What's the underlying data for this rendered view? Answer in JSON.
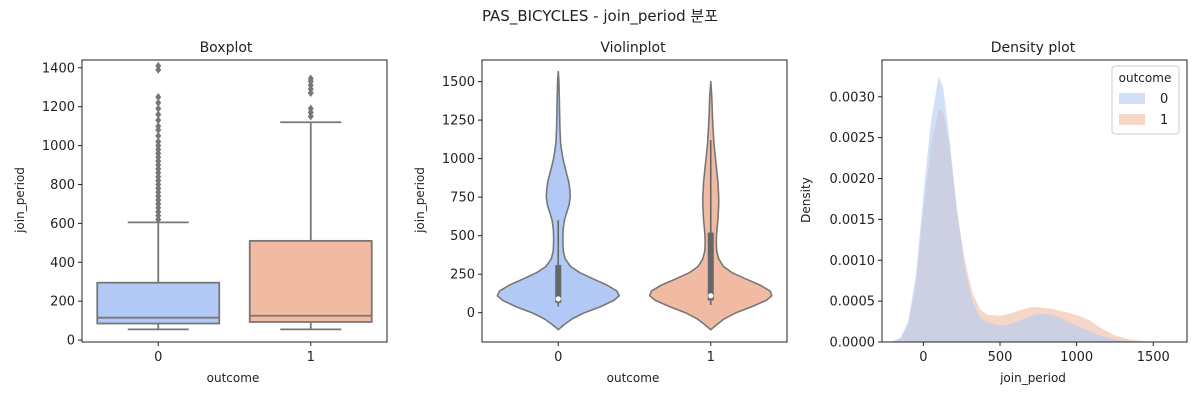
{
  "figure": {
    "suptitle": "PAS_BICYCLES - join_period 분포"
  },
  "colors": {
    "c0": "#b3c9f5",
    "c1": "#f0bba2",
    "edge": "#777777"
  },
  "chart_data": [
    {
      "type": "box",
      "title": "Boxplot",
      "xlabel": "outcome",
      "ylabel": "join_period",
      "categories": [
        "0",
        "1"
      ],
      "ylim": [
        -10,
        1440
      ],
      "yticks": [
        0,
        200,
        400,
        600,
        800,
        1000,
        1200,
        1400
      ],
      "boxes": [
        {
          "category": "0",
          "whislo": 55,
          "q1": 85,
          "median": 115,
          "q3": 295,
          "whishi": 605,
          "fliers": [
            620,
            640,
            660,
            680,
            700,
            720,
            740,
            760,
            780,
            800,
            820,
            840,
            860,
            880,
            900,
            920,
            940,
            960,
            980,
            1000,
            1020,
            1050,
            1080,
            1100,
            1130,
            1160,
            1190,
            1220,
            1250,
            1390,
            1410
          ]
        },
        {
          "category": "1",
          "whislo": 55,
          "q1": 93,
          "median": 125,
          "q3": 510,
          "whishi": 1120,
          "fliers": [
            1150,
            1170,
            1190,
            1270,
            1290,
            1310,
            1330,
            1345
          ]
        }
      ]
    },
    {
      "type": "violin",
      "title": "Violinplot",
      "xlabel": "outcome",
      "ylabel": "join_period",
      "categories": [
        "0",
        "1"
      ],
      "ylim": [
        -190,
        1640
      ],
      "yticks": [
        0,
        250,
        500,
        750,
        1000,
        1250,
        1500
      ],
      "violins": [
        {
          "category": "0",
          "q1": 65,
          "median": 90,
          "q3": 310,
          "whislo": 40,
          "whishi": 600,
          "profile": [
            [
              -110,
              0
            ],
            [
              -80,
              0.07
            ],
            [
              -40,
              0.18
            ],
            [
              0,
              0.34
            ],
            [
              40,
              0.55
            ],
            [
              80,
              0.72
            ],
            [
              110,
              0.79
            ],
            [
              140,
              0.76
            ],
            [
              180,
              0.63
            ],
            [
              220,
              0.45
            ],
            [
              260,
              0.28
            ],
            [
              300,
              0.16
            ],
            [
              350,
              0.09
            ],
            [
              400,
              0.065
            ],
            [
              450,
              0.06
            ],
            [
              500,
              0.06
            ],
            [
              550,
              0.065
            ],
            [
              600,
              0.08
            ],
            [
              650,
              0.11
            ],
            [
              700,
              0.14
            ],
            [
              750,
              0.155
            ],
            [
              800,
              0.15
            ],
            [
              850,
              0.135
            ],
            [
              900,
              0.11
            ],
            [
              950,
              0.085
            ],
            [
              1000,
              0.06
            ],
            [
              1050,
              0.045
            ],
            [
              1100,
              0.03
            ],
            [
              1200,
              0.022
            ],
            [
              1300,
              0.017
            ],
            [
              1400,
              0.013
            ],
            [
              1500,
              0.008
            ],
            [
              1565,
              0
            ]
          ]
        },
        {
          "category": "1",
          "q1": 80,
          "median": 110,
          "q3": 520,
          "whislo": 50,
          "whishi": 1120,
          "profile": [
            [
              -110,
              0
            ],
            [
              -80,
              0.07
            ],
            [
              -40,
              0.17
            ],
            [
              0,
              0.32
            ],
            [
              40,
              0.52
            ],
            [
              80,
              0.7
            ],
            [
              110,
              0.77
            ],
            [
              140,
              0.75
            ],
            [
              180,
              0.62
            ],
            [
              220,
              0.44
            ],
            [
              260,
              0.27
            ],
            [
              300,
              0.16
            ],
            [
              350,
              0.1
            ],
            [
              400,
              0.075
            ],
            [
              450,
              0.07
            ],
            [
              500,
              0.072
            ],
            [
              550,
              0.08
            ],
            [
              600,
              0.09
            ],
            [
              650,
              0.095
            ],
            [
              700,
              0.1
            ],
            [
              750,
              0.1
            ],
            [
              800,
              0.095
            ],
            [
              850,
              0.09
            ],
            [
              900,
              0.08
            ],
            [
              950,
              0.07
            ],
            [
              1000,
              0.06
            ],
            [
              1050,
              0.05
            ],
            [
              1100,
              0.04
            ],
            [
              1200,
              0.028
            ],
            [
              1300,
              0.02
            ],
            [
              1400,
              0.013
            ],
            [
              1500,
              0
            ]
          ]
        }
      ]
    },
    {
      "type": "area",
      "title": "Density plot",
      "xlabel": "join_period",
      "ylabel": "Density",
      "xlim": [
        -270,
        1720
      ],
      "ylim": [
        0,
        0.00345
      ],
      "xticks": [
        0,
        500,
        1000,
        1500
      ],
      "yticks": [
        0,
        0.0005,
        0.001,
        0.0015,
        0.002,
        0.0025,
        0.003
      ],
      "ytick_labels": [
        "0.0000",
        "0.0005",
        "0.0010",
        "0.0015",
        "0.0020",
        "0.0025",
        "0.0030"
      ],
      "legend": {
        "title": "outcome",
        "location": "top-right"
      },
      "series": [
        {
          "name": "0",
          "points": [
            [
              -270,
              0
            ],
            [
              -200,
              1e-05
            ],
            [
              -150,
              5e-05
            ],
            [
              -100,
              0.00025
            ],
            [
              -50,
              0.0008
            ],
            [
              0,
              0.0018
            ],
            [
              50,
              0.0027
            ],
            [
              100,
              0.00325
            ],
            [
              130,
              0.0031
            ],
            [
              170,
              0.0025
            ],
            [
              220,
              0.0016
            ],
            [
              270,
              0.0009
            ],
            [
              320,
              0.0005
            ],
            [
              370,
              0.0003
            ],
            [
              420,
              0.00024
            ],
            [
              500,
              0.0002
            ],
            [
              570,
              0.00022
            ],
            [
              650,
              0.00028
            ],
            [
              720,
              0.00033
            ],
            [
              780,
              0.00035
            ],
            [
              850,
              0.00033
            ],
            [
              920,
              0.00027
            ],
            [
              1000,
              0.0002
            ],
            [
              1080,
              0.00014
            ],
            [
              1150,
              8e-05
            ],
            [
              1250,
              3e-05
            ],
            [
              1350,
              1e-05
            ],
            [
              1450,
              0
            ],
            [
              1720,
              0
            ]
          ]
        },
        {
          "name": "1",
          "points": [
            [
              -270,
              0
            ],
            [
              -200,
              1e-05
            ],
            [
              -150,
              4e-05
            ],
            [
              -100,
              0.0002
            ],
            [
              -50,
              0.0007
            ],
            [
              0,
              0.0016
            ],
            [
              50,
              0.0024
            ],
            [
              100,
              0.00285
            ],
            [
              130,
              0.0028
            ],
            [
              170,
              0.0024
            ],
            [
              220,
              0.0016
            ],
            [
              270,
              0.001
            ],
            [
              320,
              0.0006
            ],
            [
              370,
              0.0004
            ],
            [
              420,
              0.00033
            ],
            [
              500,
              0.00032
            ],
            [
              570,
              0.00035
            ],
            [
              650,
              0.0004
            ],
            [
              720,
              0.00043
            ],
            [
              780,
              0.00042
            ],
            [
              850,
              0.0004
            ],
            [
              920,
              0.00037
            ],
            [
              1000,
              0.00033
            ],
            [
              1080,
              0.00027
            ],
            [
              1150,
              0.00018
            ],
            [
              1250,
              8e-05
            ],
            [
              1350,
              3e-05
            ],
            [
              1450,
              1e-05
            ],
            [
              1550,
              0
            ],
            [
              1720,
              0
            ]
          ]
        }
      ]
    }
  ]
}
